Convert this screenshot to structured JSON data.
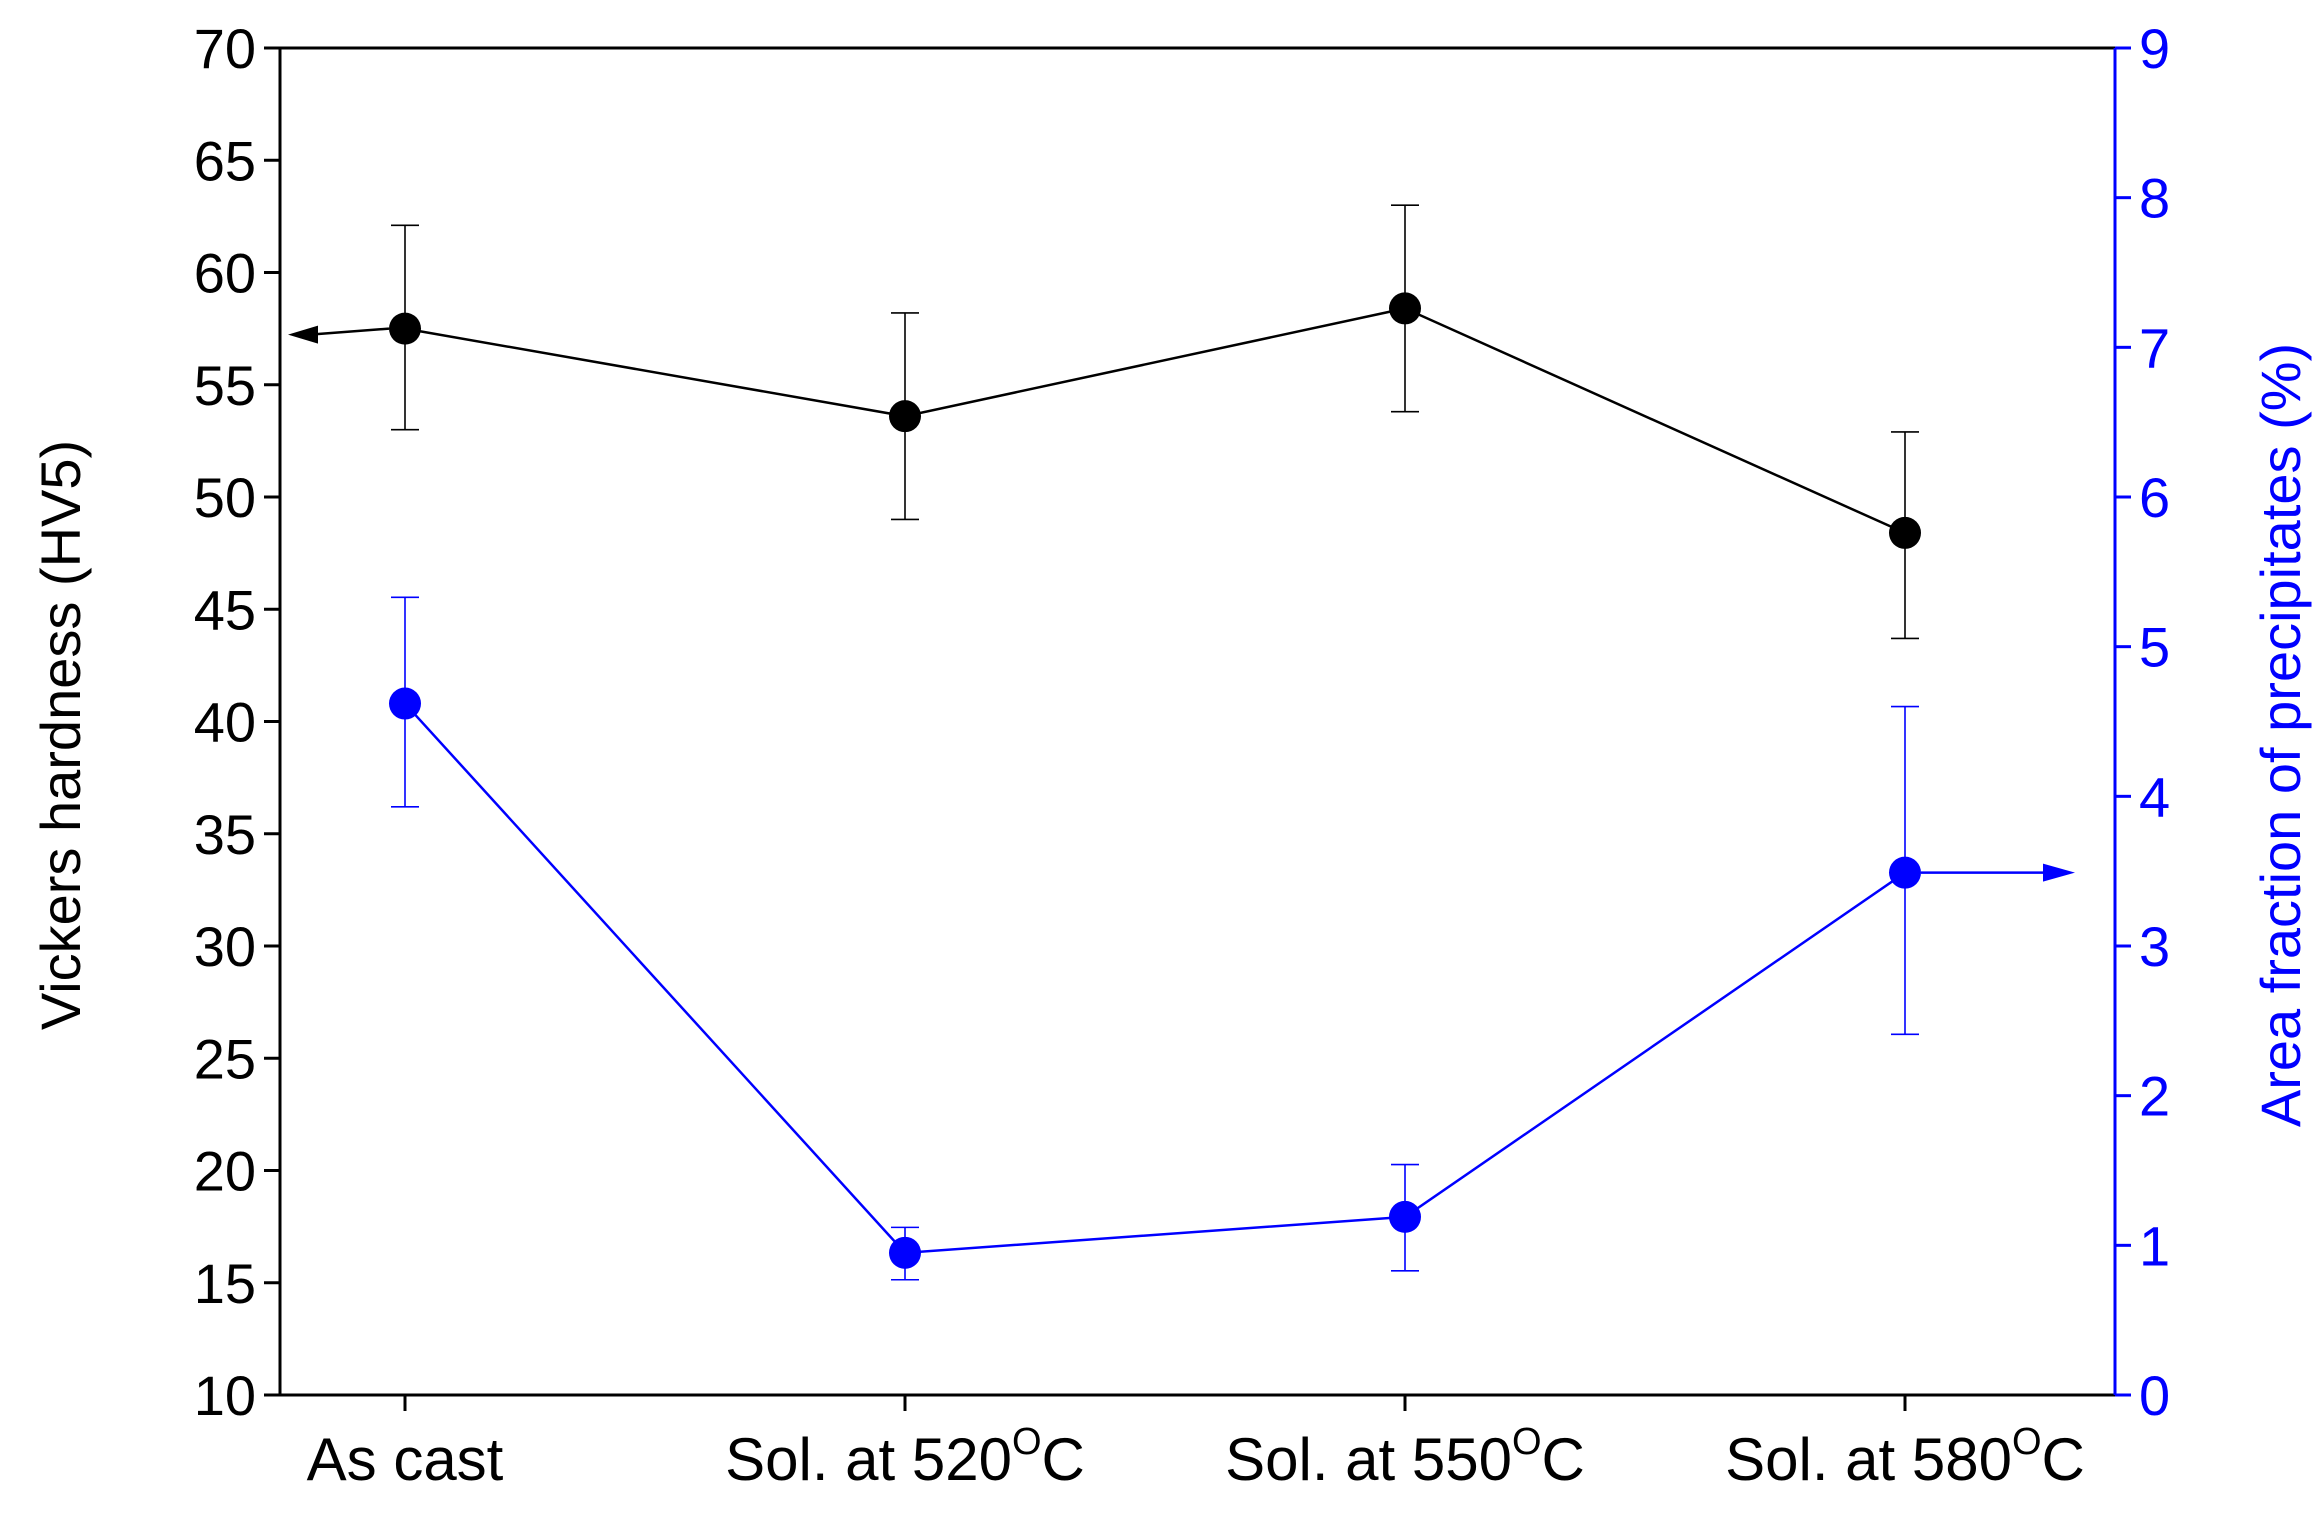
{
  "chart_data": {
    "type": "line",
    "categories": [
      "As cast",
      "Sol. at 520",
      "Sol. at 550",
      "Sol. at 580"
    ],
    "category_sup": [
      "",
      "O",
      "O",
      "O"
    ],
    "category_suffix": [
      "",
      "C",
      "C",
      "C"
    ],
    "series": [
      {
        "name": "Vickers hardness",
        "axis": "left",
        "color": "#000000",
        "values": [
          57.5,
          53.6,
          58.4,
          48.4
        ],
        "err_low": [
          53.0,
          49.0,
          53.8,
          43.7
        ],
        "err_high": [
          62.1,
          58.2,
          63.0,
          52.9
        ]
      },
      {
        "name": "Area fraction of precipitates",
        "axis": "right",
        "color": "#0000ff",
        "values": [
          4.62,
          0.95,
          1.19,
          3.49
        ],
        "err_low": [
          3.93,
          0.77,
          0.83,
          2.41
        ],
        "err_high": [
          5.33,
          1.12,
          1.54,
          4.6
        ]
      }
    ],
    "ylabel_left": "Vickers hardness (HV5)",
    "ylabel_right": "Area fraction of precipitates (%)",
    "ylim_left": [
      10,
      70
    ],
    "yticks_left": [
      10,
      15,
      20,
      25,
      30,
      35,
      40,
      45,
      50,
      55,
      60,
      65,
      70
    ],
    "ylim_right": [
      0,
      9
    ],
    "yticks_right": [
      0,
      1,
      2,
      3,
      4,
      5,
      6,
      7,
      8,
      9
    ],
    "grid": false
  }
}
